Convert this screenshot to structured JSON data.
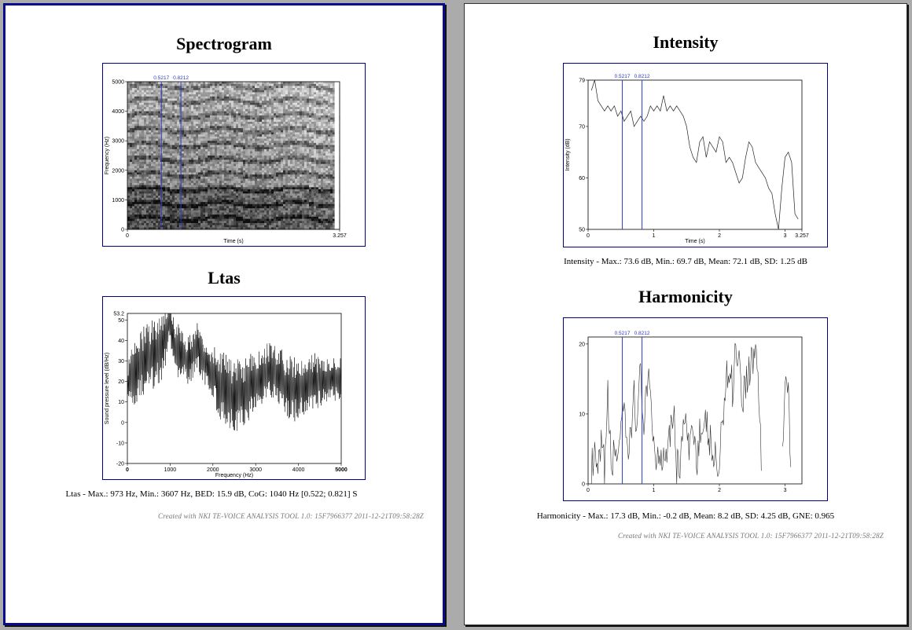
{
  "pages": [
    {
      "id": "left",
      "sections": [
        {
          "title": "Spectrogram",
          "chart_data": {
            "type": "heatmap",
            "xlabel": "Time (s)",
            "ylabel": "Frequency (Hz)",
            "xlim": [
              0,
              3.257
            ],
            "ylim": [
              0,
              5000
            ],
            "x_tick_labels": [
              "0",
              "3.257"
            ],
            "y_ticks": [
              0,
              1000,
              2000,
              3000,
              4000,
              5000
            ],
            "markers": [
              {
                "label": "0.5217",
                "x": 0.5217,
                "color": "#2a3bc4"
              },
              {
                "label": "0.8212",
                "x": 0.8212,
                "color": "#2a3bc4"
              }
            ]
          }
        },
        {
          "title": "Ltas",
          "chart_data": {
            "type": "line",
            "xlabel": "Frequency (Hz)",
            "ylabel": "Sound pressure level (dB/Hz)",
            "xlim": [
              0,
              5000
            ],
            "ylim": [
              -20,
              53.2
            ],
            "x_ticks": [
              0,
              1000,
              2000,
              3000,
              4000,
              5000
            ],
            "y_ticks": [
              -20,
              -10,
              0,
              10,
              20,
              30,
              40,
              50
            ],
            "y_max_label": "53.2",
            "series": [
              {
                "x": [
                  0,
                  100,
                  200,
                  300,
                  400,
                  500,
                  600,
                  700,
                  800,
                  900,
                  973,
                  1100,
                  1200,
                  1300,
                  1400,
                  1500,
                  1600,
                  1700,
                  1800,
                  1900,
                  2000,
                  2100,
                  2200,
                  2300,
                  2400,
                  2500,
                  2600,
                  2700,
                  2800,
                  2900,
                  3000,
                  3100,
                  3200,
                  3300,
                  3400,
                  3500,
                  3607,
                  3700,
                  3800,
                  3900,
                  4000,
                  4100,
                  4200,
                  4300,
                  4400,
                  4500,
                  4600,
                  4700,
                  4800,
                  4900,
                  5000
                ],
                "y": [
                  18,
                  22,
                  25,
                  28,
                  30,
                  32,
                  33,
                  35,
                  38,
                  42,
                  52,
                  36,
                  35,
                  33,
                  30,
                  32,
                  38,
                  35,
                  30,
                  27,
                  24,
                  21,
                  18,
                  16,
                  14,
                  13,
                  13,
                  14,
                  16,
                  18,
                  20,
                  22,
                  24,
                  25,
                  25,
                  23,
                  20,
                  18,
                  17,
                  16,
                  16,
                  17,
                  18,
                  19,
                  20,
                  20,
                  21,
                  21,
                  22,
                  22,
                  22
                ],
                "spread": [
                  10,
                  14,
                  16,
                  16,
                  18,
                  18,
                  18,
                  18,
                  18,
                  16,
                  10,
                  14,
                  14,
                  12,
                  12,
                  12,
                  12,
                  12,
                  12,
                  12,
                  14,
                  16,
                  18,
                  18,
                  18,
                  18,
                  18,
                  16,
                  16,
                  16,
                  14,
                  14,
                  14,
                  14,
                  14,
                  14,
                  16,
                  16,
                  16,
                  16,
                  14,
                  14,
                  14,
                  14,
                  14,
                  12,
                  12,
                  12,
                  12,
                  12,
                  10
                ]
              }
            ]
          },
          "stats": "Ltas - Max.: 973 Hz, Min.: 3607 Hz, BED: 15.9 dB, CoG: 1040 Hz [0.522; 0.821] S",
          "credit": "Created  with  NKI  TE-VOICE  ANALYSIS  TOOL  1.0:  15F7966377  2011-12-21T09:58:28Z"
        }
      ]
    },
    {
      "id": "right",
      "sections": [
        {
          "title": "Intensity",
          "chart_data": {
            "type": "line",
            "xlabel": "Time (s)",
            "ylabel": "Intensity (dB)",
            "xlim": [
              0,
              3.257
            ],
            "ylim": [
              50,
              79
            ],
            "x_tick_labels": [
              "0",
              "1",
              "2",
              "3",
              "3.257"
            ],
            "y_ticks": [
              50,
              60,
              70,
              79
            ],
            "markers": [
              {
                "label": "0.5217",
                "x": 0.5217,
                "color": "#2a3bc4"
              },
              {
                "label": "0.8212",
                "x": 0.8212,
                "color": "#2a3bc4"
              }
            ],
            "series": [
              {
                "x": [
                  0.05,
                  0.1,
                  0.15,
                  0.2,
                  0.25,
                  0.3,
                  0.35,
                  0.4,
                  0.45,
                  0.5,
                  0.55,
                  0.6,
                  0.65,
                  0.7,
                  0.75,
                  0.8,
                  0.85,
                  0.9,
                  0.95,
                  1.0,
                  1.05,
                  1.1,
                  1.15,
                  1.2,
                  1.25,
                  1.3,
                  1.35,
                  1.4,
                  1.45,
                  1.5,
                  1.55,
                  1.6,
                  1.65,
                  1.7,
                  1.75,
                  1.8,
                  1.85,
                  1.9,
                  1.95,
                  2.0,
                  2.05,
                  2.1,
                  2.15,
                  2.2,
                  2.25,
                  2.3,
                  2.35,
                  2.4,
                  2.45,
                  2.5,
                  2.55,
                  2.6,
                  2.65,
                  2.7,
                  2.75,
                  2.8,
                  2.85,
                  2.9,
                  2.95,
                  3.0,
                  3.05,
                  3.1,
                  3.15,
                  3.2
                ],
                "y": [
                  77,
                  79,
                  75,
                  74,
                  73,
                  74,
                  73,
                  74,
                  72,
                  73,
                  71,
                  72,
                  73,
                  70,
                  71,
                  72,
                  71,
                  72,
                  74,
                  73,
                  74,
                  73,
                  76,
                  73,
                  74,
                  73,
                  74,
                  73,
                  72,
                  70,
                  66,
                  64,
                  63,
                  67,
                  68,
                  64,
                  67,
                  66,
                  65,
                  68,
                  67,
                  63,
                  64,
                  63,
                  61,
                  59,
                  60,
                  64,
                  67,
                  66,
                  63,
                  62,
                  61,
                  60,
                  58,
                  57,
                  53,
                  50,
                  58,
                  64,
                  65,
                  63,
                  53,
                  52
                ]
              }
            ]
          },
          "stats": "Intensity - Max.: 73.6 dB, Min.: 69.7 dB, Mean: 72.1 dB, SD: 1.25 dB"
        },
        {
          "title": "Harmonicity",
          "chart_data": {
            "type": "line",
            "xlim": [
              0,
              3.257
            ],
            "ylim": [
              0,
              21
            ],
            "x_tick_labels": [
              "0",
              "1",
              "2",
              "3"
            ],
            "y_ticks": [
              0,
              10,
              20
            ],
            "markers": [
              {
                "label": "0.5217",
                "x": 0.5217,
                "color": "#2a3bc4"
              },
              {
                "label": "0.8212",
                "x": 0.8212,
                "color": "#2a3bc4"
              }
            ],
            "series": [
              {
                "x": [
                  0.05,
                  0.1,
                  0.15,
                  0.2,
                  0.25,
                  0.3,
                  0.35,
                  0.4,
                  0.45,
                  0.5,
                  0.55,
                  0.6,
                  0.65,
                  0.7,
                  0.75,
                  0.8,
                  0.85,
                  0.9,
                  0.95,
                  1.0,
                  1.05,
                  1.1,
                  1.15,
                  1.2,
                  1.25,
                  1.3,
                  1.35,
                  1.4,
                  1.45,
                  1.5,
                  1.55,
                  1.6,
                  1.65,
                  1.7,
                  1.75,
                  1.8,
                  1.85,
                  1.9,
                  1.95,
                  2.0,
                  2.05,
                  2.1,
                  2.15,
                  2.2,
                  2.25,
                  2.3,
                  2.35,
                  2.4,
                  2.45,
                  2.5,
                  2.55,
                  2.6,
                  2.65,
                  2.7,
                  2.75,
                  2.8,
                  2.85,
                  2.9,
                  2.95,
                  3.0,
                  3.05,
                  3.1,
                  3.15
                ],
                "y": [
                  2,
                  3,
                  1,
                  5,
                  2,
                  12,
                  3,
                  4,
                  5,
                  8,
                  9,
                  4,
                  6,
                  14,
                  7,
                  17,
                  8,
                  13,
                  14,
                  6,
                  3,
                  5,
                  4,
                  6,
                  8,
                  11,
                  2,
                  3,
                  9,
                  7,
                  4,
                  10,
                  3,
                  8,
                  5,
                  9,
                  6,
                  4,
                  3,
                  2,
                  10,
                  15,
                  16,
                  14,
                  20,
                  18,
                  12,
                  15,
                  16,
                  18,
                  19,
                  14,
                  0,
                  0,
                  0,
                  0,
                  0,
                  0,
                  0,
                  15,
                  13,
                  0,
                  0
                ]
              }
            ]
          },
          "stats": "Harmonicity - Max.: 17.3 dB, Min.: -0.2 dB, Mean: 8.2 dB, SD: 4.25 dB, GNE: 0.965",
          "credit": "Created  with  NKI  TE-VOICE  ANALYSIS  TOOL  1.0:  15F7966377  2011-12-21T09:58:28Z"
        }
      ]
    }
  ]
}
